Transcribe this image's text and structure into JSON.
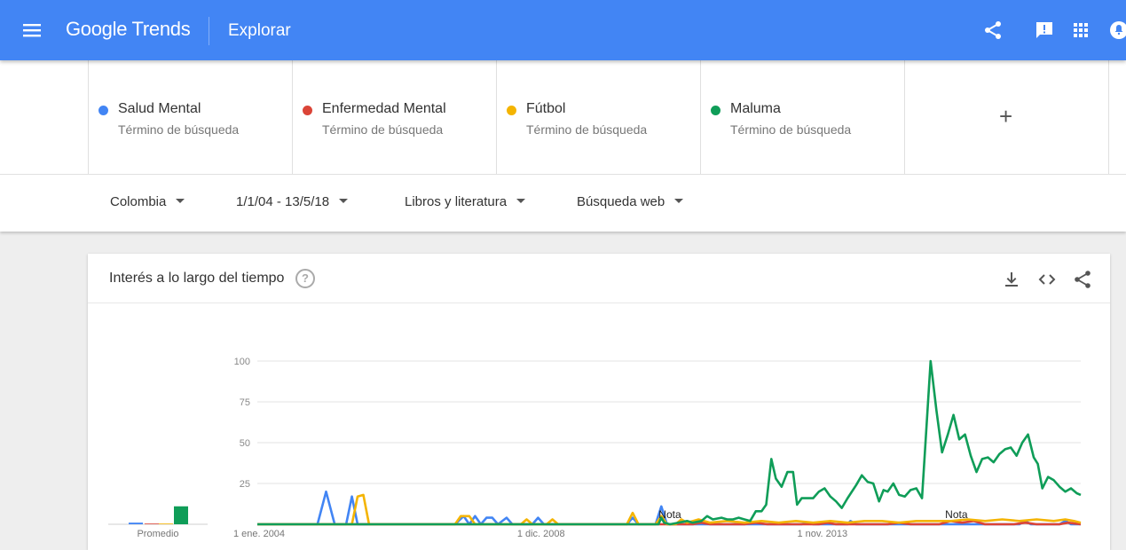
{
  "header": {
    "brand": "Google Trends",
    "title": "Explorar",
    "icons": [
      "menu-icon",
      "share-icon",
      "feedback-icon",
      "apps-icon",
      "notifications-icon"
    ],
    "color": "#4285f4"
  },
  "terms": [
    {
      "name": "Salud Mental",
      "subtitle": "Término de búsqueda",
      "color": "#4285f4"
    },
    {
      "name": "Enfermedad Mental",
      "subtitle": "Término de búsqueda",
      "color": "#db4437"
    },
    {
      "name": "Fútbol",
      "subtitle": "Término de búsqueda",
      "color": "#f4b400"
    },
    {
      "name": "Maluma",
      "subtitle": "Término de búsqueda",
      "color": "#0f9d58"
    }
  ],
  "add_term": "+",
  "filters": {
    "region": "Colombia",
    "date_range": "1/1/04 - 13/5/18",
    "category": "Libros y literatura",
    "search_type": "Búsqueda web"
  },
  "card": {
    "title": "Interés a lo largo del tiempo",
    "help": "?",
    "icons": [
      "download-icon",
      "embed-icon",
      "share-icon"
    ]
  },
  "chart_data": {
    "type": "line",
    "title": "Interés a lo largo del tiempo",
    "ylim": [
      0,
      100
    ],
    "yticks": [
      25,
      50,
      75,
      100
    ],
    "ytick_labels": [
      "25",
      "50",
      "75",
      "100"
    ],
    "xlim": [
      2004.0,
      2018.37
    ],
    "xticks": [
      {
        "x": 2004.0,
        "label": "1 ene. 2004"
      },
      {
        "x": 2008.92,
        "label": "1 dic. 2008"
      },
      {
        "x": 2013.83,
        "label": "1 nov. 2013"
      }
    ],
    "annotations": [
      {
        "x": 2011.2,
        "label": "Nota"
      },
      {
        "x": 2016.2,
        "label": "Nota"
      }
    ],
    "average_label": "Promedio",
    "averages": [
      {
        "name": "Salud Mental",
        "value": 1
      },
      {
        "name": "Enfermedad Mental",
        "value": 0
      },
      {
        "name": "Fútbol",
        "value": 0
      },
      {
        "name": "Maluma",
        "value": 11
      }
    ],
    "series": [
      {
        "name": "Salud Mental",
        "color": "#4285f4",
        "points": [
          [
            2004.0,
            0
          ],
          [
            2005.05,
            0
          ],
          [
            2005.2,
            20
          ],
          [
            2005.35,
            0
          ],
          [
            2005.55,
            0
          ],
          [
            2005.65,
            17
          ],
          [
            2005.75,
            0
          ],
          [
            2007.45,
            0
          ],
          [
            2007.6,
            5
          ],
          [
            2007.7,
            0
          ],
          [
            2007.8,
            5
          ],
          [
            2007.9,
            0
          ],
          [
            2008.0,
            4
          ],
          [
            2008.1,
            4
          ],
          [
            2008.2,
            0
          ],
          [
            2008.35,
            4
          ],
          [
            2008.45,
            0
          ],
          [
            2008.8,
            0
          ],
          [
            2008.9,
            4
          ],
          [
            2009.0,
            0
          ],
          [
            2010.45,
            0
          ],
          [
            2010.55,
            4
          ],
          [
            2010.65,
            0
          ],
          [
            2010.95,
            0
          ],
          [
            2011.05,
            11
          ],
          [
            2011.15,
            0
          ],
          [
            2013.5,
            0
          ],
          [
            2013.6,
            1
          ],
          [
            2013.7,
            0
          ],
          [
            2014.3,
            0
          ],
          [
            2014.35,
            2
          ],
          [
            2014.45,
            0
          ],
          [
            2017.3,
            0
          ],
          [
            2017.4,
            2
          ],
          [
            2017.5,
            0
          ],
          [
            2018.0,
            0
          ],
          [
            2018.1,
            2
          ],
          [
            2018.2,
            0
          ],
          [
            2018.37,
            0
          ]
        ]
      },
      {
        "name": "Enfermedad Mental",
        "color": "#db4437",
        "points": [
          [
            2004.0,
            0
          ],
          [
            2011.6,
            0
          ],
          [
            2011.75,
            1
          ],
          [
            2011.9,
            0
          ],
          [
            2012.5,
            0
          ],
          [
            2012.7,
            1
          ],
          [
            2012.9,
            0
          ],
          [
            2013.8,
            0
          ],
          [
            2013.95,
            1
          ],
          [
            2014.1,
            0
          ],
          [
            2015.0,
            0
          ],
          [
            2015.2,
            1
          ],
          [
            2015.4,
            0
          ],
          [
            2015.9,
            0
          ],
          [
            2016.1,
            2
          ],
          [
            2016.3,
            1
          ],
          [
            2016.5,
            2
          ],
          [
            2016.7,
            0
          ],
          [
            2017.2,
            0
          ],
          [
            2017.4,
            1
          ],
          [
            2017.6,
            0
          ],
          [
            2018.0,
            0
          ],
          [
            2018.15,
            1
          ],
          [
            2018.37,
            0
          ]
        ]
      },
      {
        "name": "Fútbol",
        "color": "#f4b400",
        "points": [
          [
            2004.0,
            0
          ],
          [
            2005.65,
            0
          ],
          [
            2005.75,
            17
          ],
          [
            2005.85,
            18
          ],
          [
            2005.95,
            0
          ],
          [
            2007.45,
            0
          ],
          [
            2007.55,
            5
          ],
          [
            2007.7,
            5
          ],
          [
            2007.8,
            0
          ],
          [
            2008.6,
            0
          ],
          [
            2008.7,
            3
          ],
          [
            2008.8,
            0
          ],
          [
            2009.05,
            0
          ],
          [
            2009.15,
            3
          ],
          [
            2009.25,
            0
          ],
          [
            2010.45,
            0
          ],
          [
            2010.55,
            7
          ],
          [
            2010.65,
            0
          ],
          [
            2010.95,
            0
          ],
          [
            2011.05,
            5
          ],
          [
            2011.15,
            0
          ],
          [
            2011.3,
            0
          ],
          [
            2011.4,
            3
          ],
          [
            2011.5,
            1
          ],
          [
            2011.7,
            3
          ],
          [
            2011.9,
            1
          ],
          [
            2012.2,
            2
          ],
          [
            2012.5,
            1
          ],
          [
            2012.8,
            2
          ],
          [
            2013.1,
            1
          ],
          [
            2013.4,
            2
          ],
          [
            2013.7,
            1
          ],
          [
            2014.0,
            2
          ],
          [
            2014.3,
            1
          ],
          [
            2014.6,
            2
          ],
          [
            2014.9,
            2
          ],
          [
            2015.2,
            1
          ],
          [
            2015.5,
            2
          ],
          [
            2015.8,
            2
          ],
          [
            2016.1,
            2
          ],
          [
            2016.4,
            3
          ],
          [
            2016.7,
            2
          ],
          [
            2017.0,
            3
          ],
          [
            2017.3,
            2
          ],
          [
            2017.6,
            3
          ],
          [
            2017.9,
            2
          ],
          [
            2018.1,
            3
          ],
          [
            2018.25,
            2
          ],
          [
            2018.37,
            1
          ]
        ]
      },
      {
        "name": "Maluma",
        "color": "#0f9d58",
        "points": [
          [
            2004.0,
            0
          ],
          [
            2011.0,
            0
          ],
          [
            2011.05,
            4
          ],
          [
            2011.1,
            1
          ],
          [
            2011.2,
            0
          ],
          [
            2011.35,
            1
          ],
          [
            2011.5,
            2
          ],
          [
            2011.6,
            1
          ],
          [
            2011.75,
            2
          ],
          [
            2011.85,
            5
          ],
          [
            2011.95,
            3
          ],
          [
            2012.1,
            4
          ],
          [
            2012.2,
            3
          ],
          [
            2012.3,
            3
          ],
          [
            2012.4,
            4
          ],
          [
            2012.5,
            3
          ],
          [
            2012.6,
            2
          ],
          [
            2012.7,
            8
          ],
          [
            2012.8,
            8
          ],
          [
            2012.88,
            12
          ],
          [
            2012.97,
            40
          ],
          [
            2013.05,
            28
          ],
          [
            2013.15,
            23
          ],
          [
            2013.25,
            32
          ],
          [
            2013.35,
            32
          ],
          [
            2013.42,
            12
          ],
          [
            2013.5,
            16
          ],
          [
            2013.6,
            16
          ],
          [
            2013.7,
            16
          ],
          [
            2013.8,
            20
          ],
          [
            2013.9,
            22
          ],
          [
            2014.0,
            17
          ],
          [
            2014.1,
            14
          ],
          [
            2014.2,
            10
          ],
          [
            2014.3,
            16
          ],
          [
            2014.45,
            24
          ],
          [
            2014.55,
            30
          ],
          [
            2014.65,
            26
          ],
          [
            2014.75,
            25
          ],
          [
            2014.85,
            14
          ],
          [
            2014.93,
            21
          ],
          [
            2015.0,
            20
          ],
          [
            2015.1,
            25
          ],
          [
            2015.2,
            18
          ],
          [
            2015.3,
            17
          ],
          [
            2015.4,
            21
          ],
          [
            2015.5,
            22
          ],
          [
            2015.6,
            16
          ],
          [
            2015.75,
            100
          ],
          [
            2015.85,
            70
          ],
          [
            2015.95,
            44
          ],
          [
            2016.05,
            55
          ],
          [
            2016.15,
            67
          ],
          [
            2016.25,
            52
          ],
          [
            2016.35,
            55
          ],
          [
            2016.45,
            42
          ],
          [
            2016.55,
            32
          ],
          [
            2016.65,
            40
          ],
          [
            2016.75,
            41
          ],
          [
            2016.85,
            38
          ],
          [
            2016.95,
            43
          ],
          [
            2017.05,
            46
          ],
          [
            2017.15,
            47
          ],
          [
            2017.25,
            42
          ],
          [
            2017.35,
            50
          ],
          [
            2017.45,
            55
          ],
          [
            2017.55,
            41
          ],
          [
            2017.62,
            37
          ],
          [
            2017.7,
            22
          ],
          [
            2017.8,
            29
          ],
          [
            2017.9,
            27
          ],
          [
            2018.0,
            23
          ],
          [
            2018.1,
            20
          ],
          [
            2018.2,
            22
          ],
          [
            2018.3,
            19
          ],
          [
            2018.37,
            18
          ]
        ]
      }
    ]
  }
}
